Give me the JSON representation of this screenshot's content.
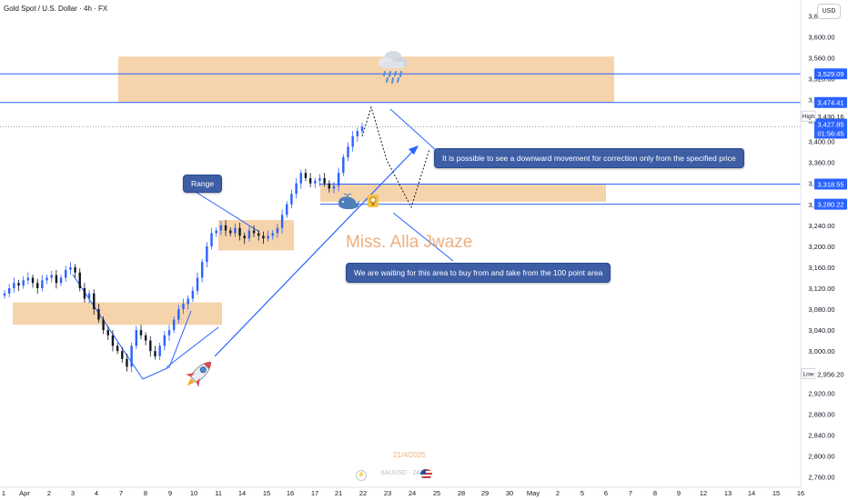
{
  "header": {
    "symbol_title": "Gold Spot / U.S. Dollar · 4h · FX",
    "currency_button": "USD"
  },
  "axis": {
    "price_ticks": [
      "3,640.00",
      "3,600.00",
      "3,560.00",
      "3,520.00",
      "3,480.00",
      "3,440.00",
      "3,400.00",
      "3,360.00",
      "3,320.00",
      "3,280.00",
      "3,240.00",
      "3,200.00",
      "3,160.00",
      "3,120.00",
      "3,080.00",
      "3,040.00",
      "3,000.00",
      "2,960.00",
      "2,920.00",
      "2,880.00",
      "2,840.00",
      "2,800.00",
      "2,760.00"
    ],
    "time_ticks": [
      "1",
      "Apr",
      "2",
      "3",
      "4",
      "7",
      "8",
      "9",
      "10",
      "11",
      "14",
      "15",
      "16",
      "17",
      "21",
      "22",
      "23",
      "24",
      "25",
      "28",
      "29",
      "30",
      "May",
      "2",
      "5",
      "6",
      "7",
      "8",
      "9",
      "12",
      "13",
      "14",
      "15",
      "16"
    ]
  },
  "price_labels": {
    "level_1": "3,529.09",
    "level_2": "3,474.41",
    "high_tag": "High",
    "high_value": "3,430.16",
    "last_price": "3,427.85",
    "countdown": "01:56:45",
    "level_3": "3,318.55",
    "level_4": "3,280.22",
    "low_tag": "Low",
    "low_value": "2,956.20"
  },
  "annotations": {
    "range_label": "Range",
    "correction_note": "It is possible to see a downward movement for correction only from the specified price",
    "buy_note": "We are waiting for this area to buy from and take from the 100 point area",
    "author_watermark": "Miss. Alla Jwaze",
    "date_watermark": "21/4/2025",
    "symbol_watermark": "XAUUSD · 240"
  },
  "icons": {
    "cloud": "rain-cloud-icon",
    "rocket": "rocket-icon",
    "whale": "whale-icon",
    "idea": "lightbulb-icon",
    "bolt": "lightning-icon",
    "flag": "us-flag-icon"
  },
  "colors": {
    "bull": "#2962ff",
    "bear": "#131722",
    "zone": "#f2c48f",
    "line": "#2962ff",
    "callout": "#3d5ea5",
    "watermark": "#e8a36b"
  },
  "chart_data": {
    "type": "candlestick",
    "timeframe": "4h",
    "y_range": [
      2740,
      3670
    ],
    "horizontal_levels": [
      3529.09,
      3474.41,
      3427.85,
      3318.55,
      3280.22
    ],
    "zones": [
      {
        "from": 3474,
        "to": 3562
      },
      {
        "from": 3285,
        "to": 3318
      },
      {
        "from": 3192,
        "to": 3250
      },
      {
        "from": 3050,
        "to": 3093
      }
    ],
    "close_path": [
      3110,
      3120,
      3130,
      3125,
      3135,
      3140,
      3130,
      3120,
      3135,
      3140,
      3145,
      3130,
      3140,
      3155,
      3160,
      3150,
      3120,
      3100,
      3110,
      3080,
      3060,
      3040,
      3030,
      3010,
      3000,
      2985,
      2970,
      3010,
      3040,
      3030,
      3020,
      3000,
      2990,
      3010,
      3030,
      3040,
      3060,
      3080,
      3090,
      3100,
      3115,
      3140,
      3170,
      3200,
      3225,
      3230,
      3240,
      3230,
      3225,
      3235,
      3220,
      3215,
      3230,
      3225,
      3220,
      3215,
      3220,
      3225,
      3235,
      3260,
      3280,
      3300,
      3320,
      3340,
      3330,
      3320,
      3325,
      3330,
      3320,
      3310,
      3315,
      3340,
      3370,
      3390,
      3410,
      3420,
      3428
    ]
  }
}
